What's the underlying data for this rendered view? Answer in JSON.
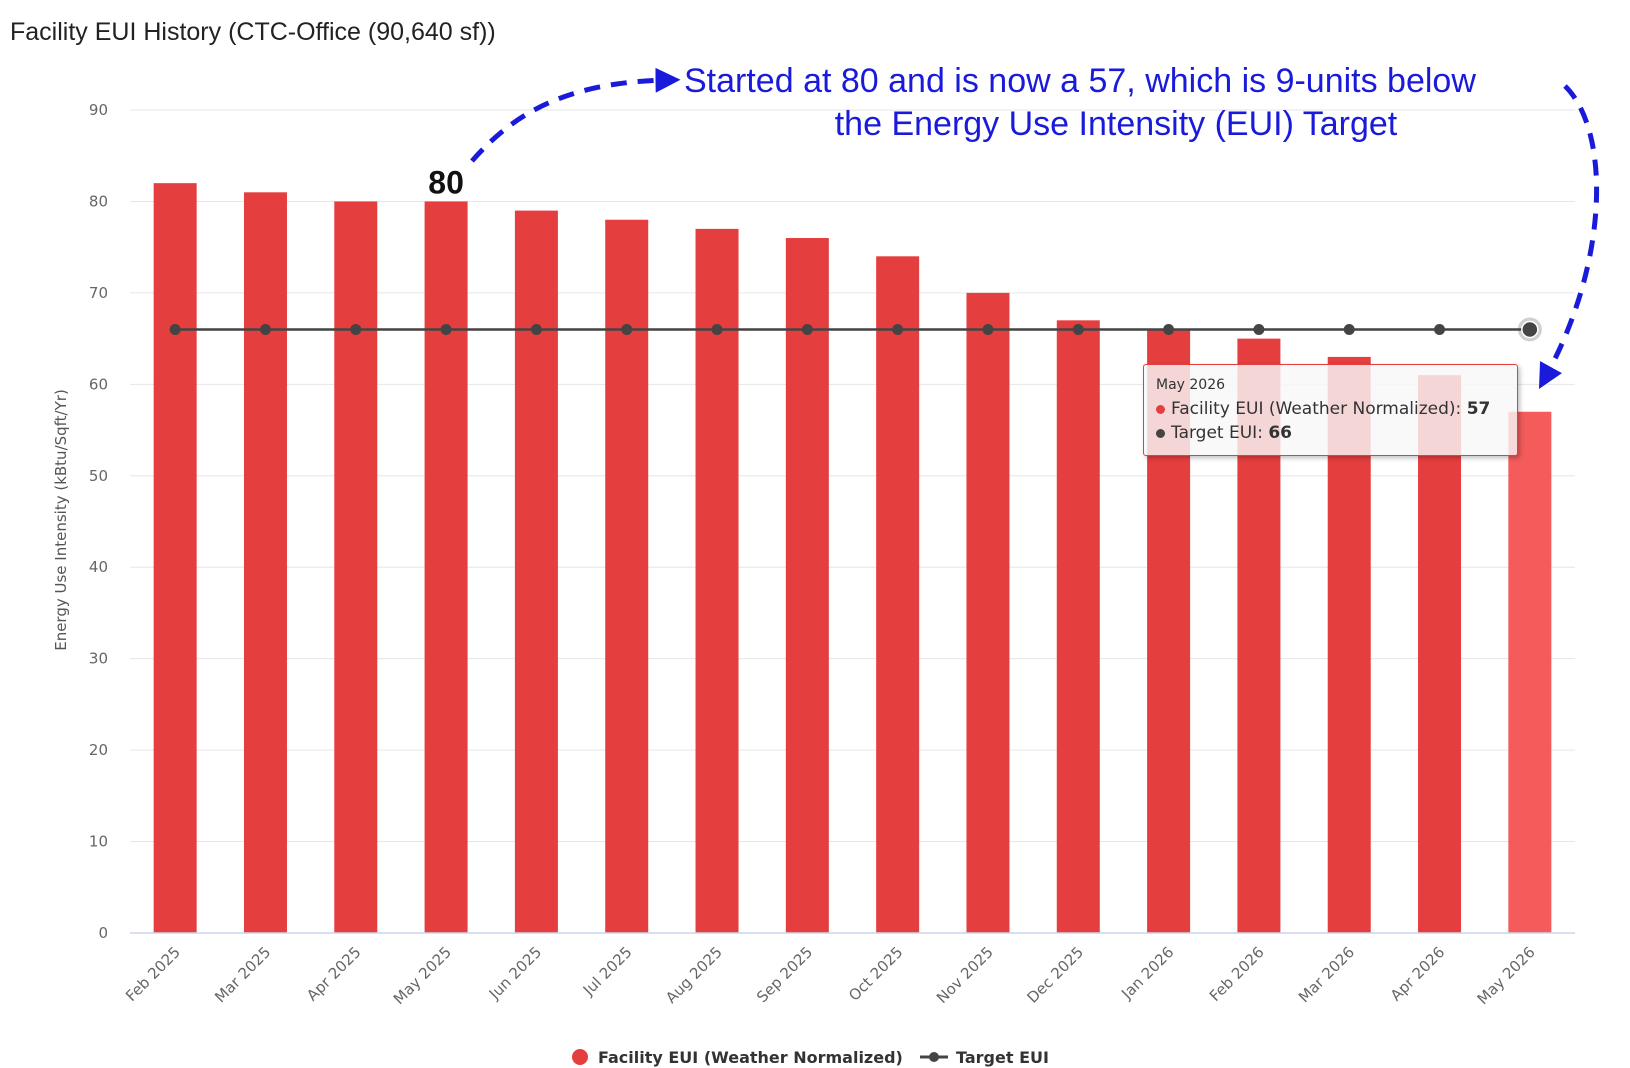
{
  "title": "Facility EUI History (CTC-Office (90,640 sf))",
  "annotation": {
    "line1": "Started at 80 and is now a 57, which is 9-units below",
    "line2": "the Energy Use Intensity (EUI) Target",
    "color": "#1a1adb"
  },
  "highlight_label": "80",
  "tooltip": {
    "period": "May 2026",
    "rows": [
      {
        "label": "Facility EUI (Weather Normalized)",
        "value": "57"
      },
      {
        "label": "Target EUI",
        "value": "66"
      }
    ]
  },
  "chart_data": {
    "type": "bar",
    "title": "Facility EUI History (CTC-Office (90,640 sf))",
    "ylabel": "Energy Use Intensity (kBtu/Sqft/Yr)",
    "xlabel": "",
    "ylim": [
      0,
      90
    ],
    "yticks": [
      0,
      10,
      20,
      30,
      40,
      50,
      60,
      70,
      80,
      90
    ],
    "grid": true,
    "legend_position": "bottom-center",
    "categories": [
      "Feb 2025",
      "Mar 2025",
      "Apr 2025",
      "May 2025",
      "Jun 2025",
      "Jul 2025",
      "Aug 2025",
      "Sep 2025",
      "Oct 2025",
      "Nov 2025",
      "Dec 2025",
      "Jan 2026",
      "Feb 2026",
      "Mar 2026",
      "Apr 2026",
      "May 2026"
    ],
    "series": [
      {
        "name": "Facility EUI (Weather Normalized)",
        "type": "bar",
        "color": "#e53e3e",
        "highlight_color": "#f45b5b",
        "values": [
          82,
          81,
          80,
          80,
          79,
          78,
          77,
          76,
          74,
          70,
          67,
          66,
          65,
          63,
          61,
          57
        ]
      },
      {
        "name": "Target EUI",
        "type": "line",
        "color": "#444444",
        "values": [
          66,
          66,
          66,
          66,
          66,
          66,
          66,
          66,
          66,
          66,
          66,
          66,
          66,
          66,
          66,
          66
        ]
      }
    ]
  }
}
